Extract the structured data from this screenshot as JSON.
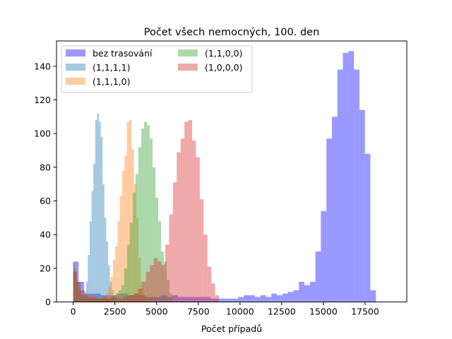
{
  "chart_data": {
    "type": "histogram",
    "title": "Počet všech nemocných, 100. den",
    "xlabel": "Počet případů",
    "ylabel": "",
    "xlim": [
      -1000,
      20000
    ],
    "ylim": [
      0,
      155
    ],
    "xticks": [
      0,
      2500,
      5000,
      7500,
      10000,
      12500,
      15000,
      17500
    ],
    "xtick_labels": [
      "0",
      "2500",
      "5000",
      "7500",
      "10000",
      "12500",
      "15000",
      "17500"
    ],
    "yticks": [
      0,
      20,
      40,
      60,
      80,
      100,
      120,
      140
    ],
    "ytick_labels": [
      "0",
      "20",
      "40",
      "60",
      "80",
      "100",
      "120",
      "140"
    ],
    "grid": false,
    "legend_placement": "top-left",
    "legend_columns": 2,
    "series": [
      {
        "name": "bez trasování",
        "color": "#0000ff",
        "opacity": 0.4,
        "bin_start": 0,
        "bin_width": 330,
        "counts": [
          24,
          12,
          5,
          5,
          5,
          4,
          4,
          4,
          5,
          5,
          4,
          5,
          4,
          3,
          3,
          3,
          4,
          3,
          4,
          3,
          3,
          3,
          3,
          3,
          3,
          2,
          2,
          2,
          2,
          2,
          3,
          4,
          4,
          3,
          4,
          3,
          5,
          4,
          5,
          6,
          7,
          12,
          10,
          12,
          30,
          54,
          97,
          110,
          138,
          148,
          149,
          138,
          114,
          88,
          7
        ]
      },
      {
        "name": "(1,1,1,1)",
        "color": "#1f77b4",
        "opacity": 0.4,
        "bin_start": 0,
        "bin_width": 110,
        "counts": [
          23,
          18,
          12,
          8,
          4,
          3,
          6,
          12,
          28,
          48,
          66,
          82,
          108,
          112,
          107,
          98,
          70,
          50,
          36,
          22,
          12,
          7,
          4,
          3
        ]
      },
      {
        "name": "(1,1,1,0)",
        "color": "#ff7f0e",
        "opacity": 0.4,
        "bin_start": 0,
        "bin_width": 140,
        "counts": [
          22,
          15,
          8,
          5,
          3,
          3,
          4,
          4,
          4,
          3,
          3,
          2,
          3,
          4,
          5,
          9,
          15,
          25,
          33,
          48,
          63,
          78,
          87,
          107,
          108,
          91,
          70,
          50,
          26,
          12,
          4,
          3,
          3
        ]
      },
      {
        "name": "(1,1,0,0)",
        "color": "#2ca02c",
        "opacity": 0.4,
        "bin_start": 0,
        "bin_width": 170,
        "counts": [
          20,
          12,
          6,
          4,
          3,
          2,
          3,
          2,
          3,
          2,
          3,
          2,
          2,
          3,
          4,
          5,
          7,
          10,
          20,
          34,
          47,
          65,
          76,
          92,
          103,
          107,
          105,
          97,
          80,
          62,
          48,
          30,
          24,
          13,
          5
        ]
      },
      {
        "name": "(1,0,0,0)",
        "color": "#d62728",
        "opacity": 0.4,
        "bin_start": 0,
        "bin_width": 230,
        "counts": [
          18,
          12,
          7,
          4,
          3,
          3,
          2,
          2,
          3,
          2,
          3,
          2,
          2,
          3,
          4,
          4,
          5,
          8,
          12,
          18,
          22,
          26,
          24,
          22,
          34,
          52,
          71,
          89,
          97,
          107,
          108,
          96,
          86,
          61,
          40,
          21,
          11,
          4
        ]
      }
    ]
  }
}
